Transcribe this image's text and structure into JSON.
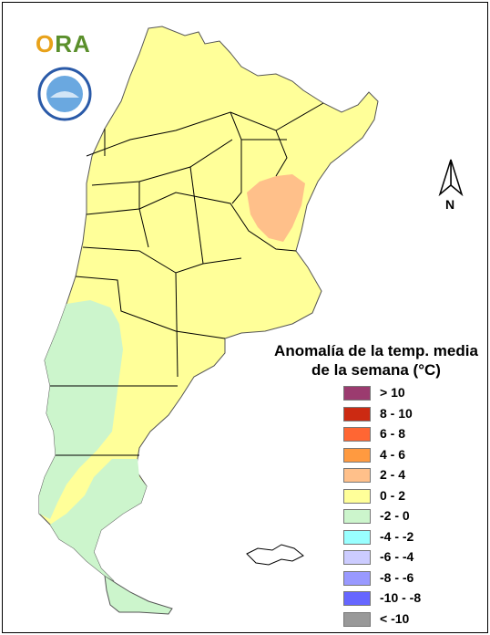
{
  "legend": {
    "title_line1": "Anomalía de la temp. media",
    "title_line2": "de la semana (°C)",
    "items": [
      {
        "label": "> 10",
        "color": "#9b3b6f"
      },
      {
        "label": "8 - 10",
        "color": "#cc2a12"
      },
      {
        "label": "6 - 8",
        "color": "#ff6633"
      },
      {
        "label": "4 - 6",
        "color": "#ff9a40"
      },
      {
        "label": "2 - 4",
        "color": "#ffc08a"
      },
      {
        "label": "0 - 2",
        "color": "#ffff99"
      },
      {
        "label": "-2 - 0",
        "color": "#ccf5cc"
      },
      {
        "label": "-4 - -2",
        "color": "#99ffff"
      },
      {
        "label": "-6 - -4",
        "color": "#ccccff"
      },
      {
        "label": "-8 - -6",
        "color": "#9999ff"
      },
      {
        "label": "-10 - -8",
        "color": "#6666ff"
      },
      {
        "label": "< -10",
        "color": "#999999"
      }
    ]
  },
  "logo": {
    "text_first": "O",
    "text_rest": "RA"
  },
  "north_label": "N",
  "map_colors": {
    "land": "#ffff99",
    "warm": "#ffc08a",
    "cool": "#ccf5cc",
    "border": "#000000",
    "falklands": "#ffffff"
  }
}
